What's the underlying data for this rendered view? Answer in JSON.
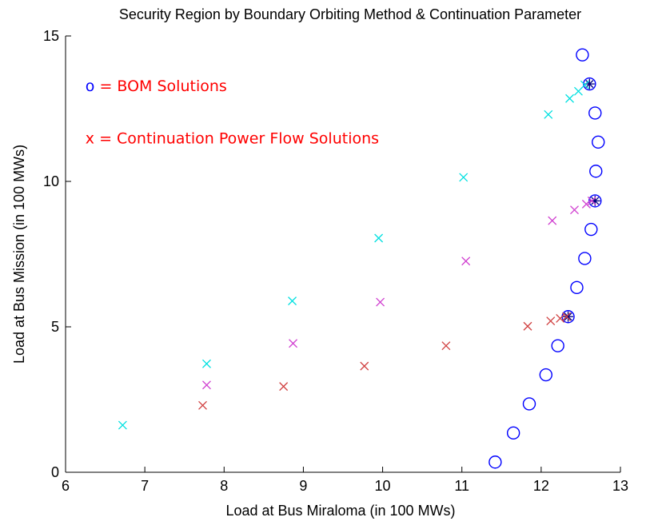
{
  "chart_data": {
    "type": "scatter",
    "title": "Security Region by Boundary Orbiting Method & Continuation Parameter",
    "xlabel": "Load at Bus Miraloma (in 100 MWs)",
    "ylabel": "Load at Bus Mission (in 100 MWs)",
    "xlim": [
      6,
      13
    ],
    "ylim": [
      0,
      15
    ],
    "xticks": [
      "6",
      "7",
      "8",
      "9",
      "10",
      "11",
      "12",
      "13"
    ],
    "yticks": [
      "0",
      "5",
      "10",
      "15"
    ],
    "grid": false,
    "annotations": [
      {
        "text": "o = BOM Solutions",
        "color": "#ff0000",
        "marker": "o",
        "marker_color": "#0000ff",
        "x": 6.25,
        "y": 13.1
      },
      {
        "text": "x = Continuation Power Flow Solutions",
        "color": "#ff0000",
        "marker": "x",
        "marker_color": "#ff0000",
        "x": 6.25,
        "y": 11.3
      }
    ],
    "series": [
      {
        "marker": "o",
        "color": "#0000ff",
        "x": [
          11.42,
          11.65,
          11.85,
          12.06,
          12.21,
          12.34,
          12.45,
          12.55,
          12.63,
          12.68,
          12.69,
          12.72,
          12.68,
          12.61,
          12.52
        ],
        "y": [
          0.35,
          1.35,
          2.35,
          3.35,
          4.35,
          5.35,
          6.35,
          7.35,
          8.35,
          9.33,
          10.35,
          11.35,
          12.35,
          13.35,
          14.35
        ]
      },
      {
        "marker": "*",
        "color": "#000080",
        "x": [
          12.34,
          12.68,
          12.61
        ],
        "y": [
          5.35,
          9.33,
          13.35
        ]
      },
      {
        "marker": "x",
        "color": "#00e0e0",
        "x": [
          6.72,
          7.78,
          8.86,
          9.95,
          11.02,
          12.09,
          12.36,
          12.47,
          12.55
        ],
        "y": [
          1.62,
          3.73,
          5.89,
          8.05,
          10.14,
          12.3,
          12.85,
          13.1,
          13.32
        ]
      },
      {
        "marker": "x",
        "color": "#d040d0",
        "x": [
          7.78,
          8.87,
          9.97,
          11.05,
          12.14,
          12.42,
          12.57,
          12.64
        ],
        "y": [
          3.0,
          4.43,
          5.85,
          7.26,
          8.65,
          9.02,
          9.22,
          9.33
        ]
      },
      {
        "marker": "x",
        "color": "#d04040",
        "x": [
          7.73,
          8.75,
          9.77,
          10.8,
          11.83,
          12.12,
          12.24,
          12.32
        ],
        "y": [
          2.3,
          2.95,
          3.65,
          4.35,
          5.02,
          5.2,
          5.29,
          5.35
        ]
      }
    ]
  }
}
